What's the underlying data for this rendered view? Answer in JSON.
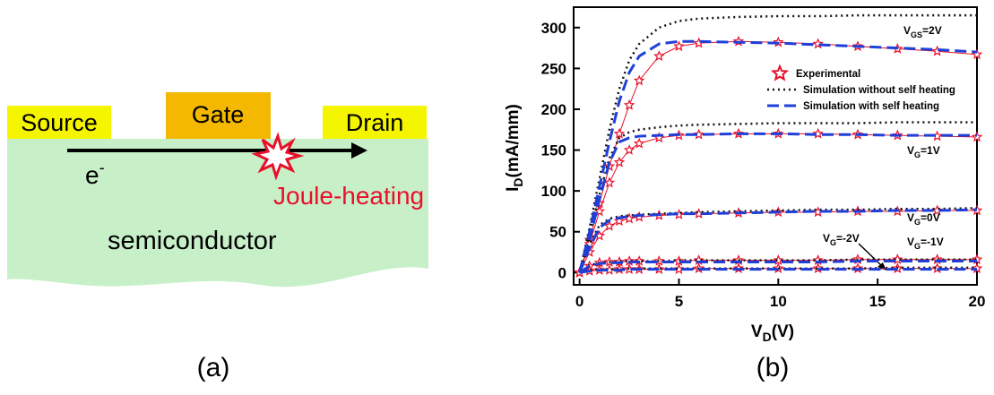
{
  "diagram": {
    "source": "Source",
    "gate": "Gate",
    "drain": "Drain",
    "electron": "e",
    "electron_sup": "-",
    "heating": "Joule-heating",
    "region": "semiconductor",
    "caption": "(a)"
  },
  "chart_data": {
    "type": "line",
    "caption": "(b)",
    "xlabel": {
      "main": "V",
      "sub": "D",
      "rest": "(V)"
    },
    "ylabel": {
      "main": "I",
      "sub": "D",
      "rest": "(mA/mm)"
    },
    "xlim": [
      -0.3,
      20
    ],
    "ylim": [
      -15,
      325
    ],
    "xticks": [
      0,
      5,
      10,
      15,
      20
    ],
    "yticks": [
      0,
      50,
      100,
      150,
      200,
      250,
      300
    ],
    "legend": "upper right",
    "x": [
      0,
      0.5,
      1,
      1.5,
      2,
      2.5,
      3,
      4,
      5,
      6,
      8,
      10,
      12,
      14,
      16,
      18,
      20
    ],
    "series": [
      {
        "name": "Experimental",
        "color": "#e8102a",
        "style": "star",
        "values": [
          [
            0,
            40,
            85,
            130,
            170,
            205,
            235,
            265,
            277,
            281,
            283,
            282,
            280,
            277,
            274,
            271,
            267
          ],
          [
            0,
            35,
            75,
            110,
            135,
            150,
            158,
            165,
            168,
            169,
            170,
            170,
            170,
            169,
            168,
            167,
            166
          ],
          [
            0,
            25,
            45,
            57,
            63,
            66,
            68,
            70,
            71,
            72,
            73,
            74,
            74,
            75,
            75,
            76,
            76
          ],
          [
            0,
            8,
            12,
            13,
            13,
            14,
            14,
            14,
            14,
            15,
            15,
            15,
            15,
            16,
            16,
            16,
            16
          ],
          [
            0,
            2,
            3,
            3,
            4,
            4,
            4,
            4,
            4,
            5,
            5,
            5,
            5,
            5,
            5,
            5,
            5
          ]
        ]
      },
      {
        "name": "Simulation without self heating",
        "color": "#111111",
        "style": "dotted",
        "values": [
          [
            0,
            55,
            115,
            175,
            225,
            260,
            280,
            300,
            308,
            311,
            313,
            314,
            314,
            315,
            315,
            315,
            315
          ],
          [
            0,
            45,
            95,
            140,
            165,
            172,
            175,
            178,
            180,
            181,
            182,
            183,
            183,
            183,
            184,
            184,
            184
          ],
          [
            0,
            35,
            58,
            66,
            69,
            70,
            71,
            72,
            73,
            74,
            75,
            76,
            77,
            77,
            78,
            78,
            79
          ],
          [
            0,
            9,
            12,
            13,
            14,
            14,
            14,
            14,
            15,
            15,
            15,
            15,
            15,
            16,
            16,
            16,
            16
          ],
          [
            0,
            3,
            4,
            4,
            4,
            5,
            5,
            5,
            5,
            5,
            5,
            5,
            5,
            5,
            6,
            6,
            6
          ]
        ]
      },
      {
        "name": "Simulation with self heating",
        "color": "#1f3fd8",
        "style": "dashed",
        "values": [
          [
            0,
            50,
            105,
            160,
            210,
            245,
            265,
            280,
            283,
            283,
            282,
            281,
            279,
            277,
            275,
            273,
            270
          ],
          [
            0,
            40,
            90,
            135,
            160,
            165,
            167,
            168,
            169,
            169,
            170,
            170,
            169,
            169,
            168,
            168,
            168
          ],
          [
            0,
            30,
            55,
            64,
            67,
            69,
            70,
            71,
            72,
            72,
            73,
            74,
            75,
            75,
            76,
            76,
            77
          ],
          [
            0,
            8,
            11,
            12,
            12,
            13,
            13,
            13,
            13,
            13,
            13,
            13,
            13,
            14,
            14,
            14,
            14
          ],
          [
            0,
            2,
            3,
            3,
            3,
            4,
            4,
            4,
            4,
            4,
            4,
            4,
            4,
            4,
            4,
            4,
            4
          ]
        ]
      }
    ],
    "annotations": [
      {
        "main": "V",
        "sub": "GS",
        "rest": "=2V"
      },
      {
        "main": "V",
        "sub": "G",
        "rest": "=1V"
      },
      {
        "main": "V",
        "sub": "G",
        "rest": "=0V"
      },
      {
        "main": "V",
        "sub": "G",
        "rest": "=-2V"
      },
      {
        "main": "V",
        "sub": "G",
        "rest": "=-1V"
      }
    ]
  }
}
